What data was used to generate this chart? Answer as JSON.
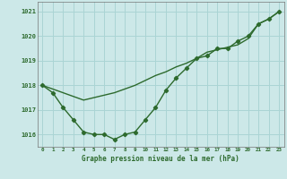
{
  "line1_x": [
    0,
    1,
    2,
    3,
    4,
    5,
    6,
    7,
    8,
    9,
    10,
    11,
    12,
    13,
    14,
    15,
    16,
    17,
    18,
    19,
    20,
    21,
    22,
    23
  ],
  "line1_y": [
    1018.0,
    1017.7,
    1017.1,
    1016.6,
    1016.1,
    1016.0,
    1016.0,
    1015.8,
    1016.0,
    1016.1,
    1016.6,
    1017.1,
    1017.8,
    1018.3,
    1018.7,
    1019.1,
    1019.2,
    1019.5,
    1019.5,
    1019.8,
    1020.0,
    1020.5,
    1020.7,
    1021.0
  ],
  "line2_x": [
    0,
    1,
    2,
    3,
    4,
    5,
    6,
    7,
    8,
    9,
    10,
    11,
    12,
    13,
    14,
    15,
    16,
    17,
    18,
    19,
    20,
    21,
    22,
    23
  ],
  "line2_y": [
    1018.0,
    1017.85,
    1017.7,
    1017.55,
    1017.4,
    1017.5,
    1017.6,
    1017.7,
    1017.85,
    1018.0,
    1018.2,
    1018.4,
    1018.55,
    1018.75,
    1018.9,
    1019.1,
    1019.35,
    1019.45,
    1019.55,
    1019.65,
    1019.9,
    1020.5,
    1020.7,
    1021.0
  ],
  "line_color": "#2d6a2d",
  "bg_color": "#cce8e8",
  "grid_color": "#aad4d4",
  "xlabel": "Graphe pression niveau de la mer (hPa)",
  "xlim": [
    -0.5,
    23.5
  ],
  "ylim": [
    1015.5,
    1021.4
  ],
  "yticks": [
    1016,
    1017,
    1018,
    1019,
    1020,
    1021
  ],
  "xticks": [
    0,
    1,
    2,
    3,
    4,
    5,
    6,
    7,
    8,
    9,
    10,
    11,
    12,
    13,
    14,
    15,
    16,
    17,
    18,
    19,
    20,
    21,
    22,
    23
  ],
  "marker": "D",
  "marker_size": 2.2,
  "line_width": 1.0
}
